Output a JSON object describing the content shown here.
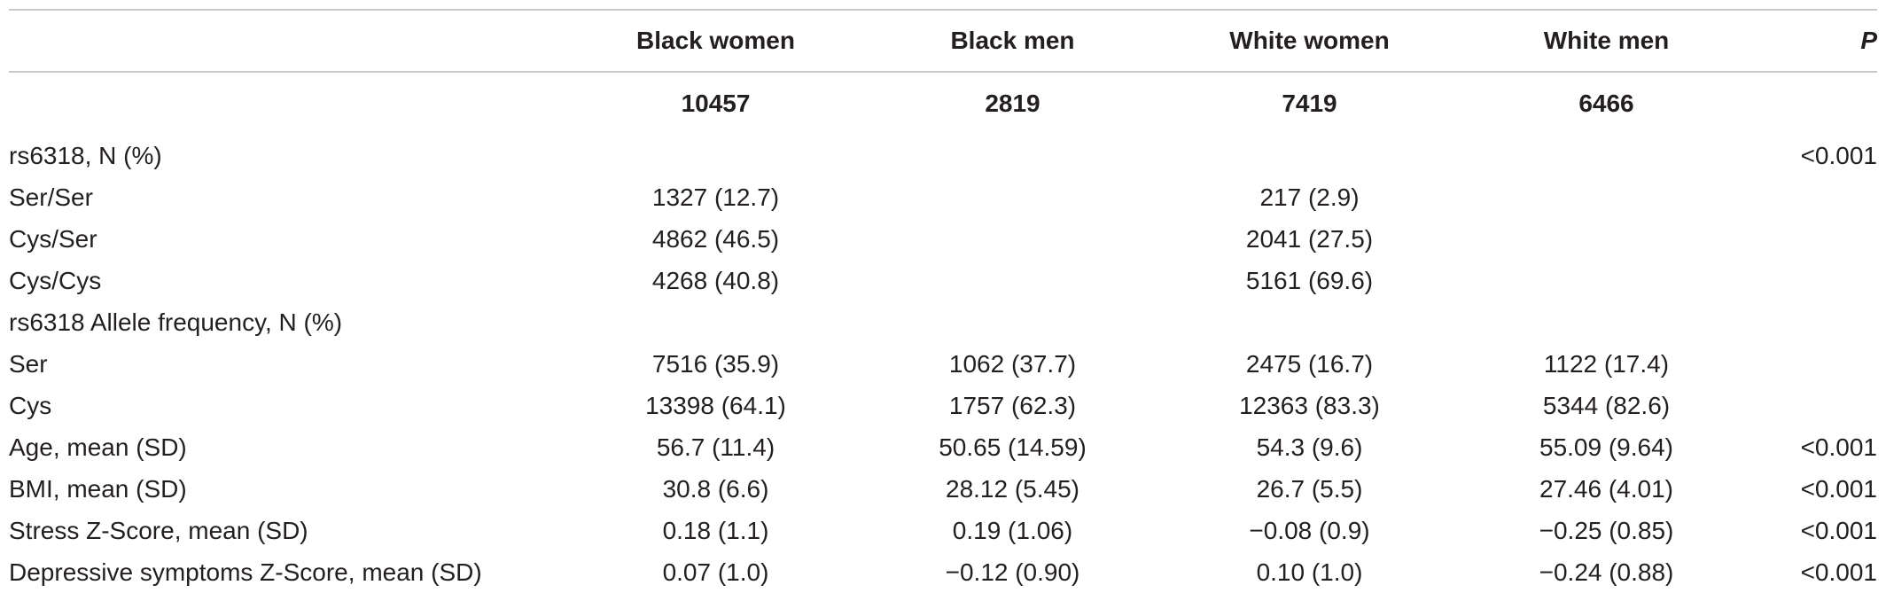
{
  "table": {
    "headers": [
      "",
      "Black women",
      "Black men",
      "White women",
      "White men",
      "P"
    ],
    "n_row": [
      "",
      "10457",
      "2819",
      "7419",
      "6466",
      ""
    ],
    "rows": [
      [
        "rs6318, N (%)",
        "",
        "",
        "",
        "",
        "<0.001"
      ],
      [
        "Ser/Ser",
        "1327 (12.7)",
        "",
        "217 (2.9)",
        "",
        ""
      ],
      [
        "Cys/Ser",
        "4862 (46.5)",
        "",
        "2041 (27.5)",
        "",
        ""
      ],
      [
        "Cys/Cys",
        "4268 (40.8)",
        "",
        "5161 (69.6)",
        "",
        ""
      ],
      [
        "rs6318 Allele frequency, N (%)",
        "",
        "",
        "",
        "",
        ""
      ],
      [
        "Ser",
        "7516 (35.9)",
        "1062 (37.7)",
        "2475 (16.7)",
        "1122 (17.4)",
        ""
      ],
      [
        "Cys",
        "13398 (64.1)",
        "1757 (62.3)",
        "12363 (83.3)",
        "5344 (82.6)",
        ""
      ],
      [
        "Age, mean (SD)",
        "56.7 (11.4)",
        "50.65 (14.59)",
        "54.3 (9.6)",
        "55.09 (9.64)",
        "<0.001"
      ],
      [
        "BMI, mean (SD)",
        "30.8 (6.6)",
        "28.12 (5.45)",
        "26.7 (5.5)",
        "27.46 (4.01)",
        "<0.001"
      ],
      [
        "Stress Z-Score, mean (SD)",
        "0.18 (1.1)",
        "0.19 (1.06)",
        "−0.08 (0.9)",
        "−0.25 (0.85)",
        "<0.001"
      ],
      [
        "Depressive symptoms Z-Score, mean (SD)",
        "0.07 (1.0)",
        "−0.12 (0.90)",
        "0.10 (1.0)",
        "−0.24 (0.88)",
        "<0.001"
      ]
    ]
  }
}
